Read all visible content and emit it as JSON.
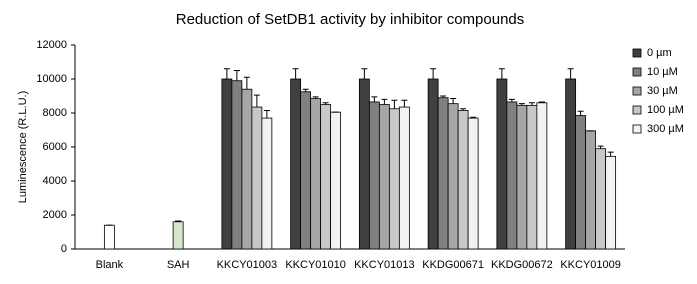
{
  "chart_data": {
    "type": "bar",
    "title": "Reduction of SetDB1 activity by inhibitor compounds",
    "y_label": "Luminescence (R.L.U.)",
    "categories": [
      "Blank",
      "SAH",
      "KKCY01003",
      "KKCY01010",
      "KKCY01013",
      "KKDG00671",
      "KKDG00672",
      "KKCY01009"
    ],
    "control_values": [
      1400,
      1600,
      null,
      null,
      null,
      null,
      null,
      null
    ],
    "control_errors": [
      0,
      50,
      null,
      null,
      null,
      null,
      null,
      null
    ],
    "control_colors": [
      "#ffffff",
      "#d7e8c8"
    ],
    "series": [
      {
        "name": "0 µm",
        "color": "#404040",
        "values": [
          null,
          null,
          10000,
          10000,
          10000,
          10000,
          10000,
          10000
        ],
        "errors": [
          null,
          null,
          600,
          600,
          600,
          600,
          600,
          600
        ]
      },
      {
        "name": "10 µM",
        "color": "#808080",
        "values": [
          null,
          null,
          9900,
          9250,
          8650,
          8900,
          8650,
          7850
        ],
        "errors": [
          null,
          null,
          600,
          150,
          300,
          100,
          150,
          250
        ]
      },
      {
        "name": "30 µM",
        "color": "#a6a6a6",
        "values": [
          null,
          null,
          9400,
          8850,
          8500,
          8550,
          8450,
          6950
        ],
        "errors": [
          null,
          null,
          700,
          100,
          300,
          300,
          100,
          0
        ]
      },
      {
        "name": "100 µM",
        "color": "#c8c8c8",
        "values": [
          null,
          null,
          8350,
          8500,
          8250,
          8150,
          8450,
          5900
        ],
        "errors": [
          null,
          null,
          700,
          100,
          500,
          100,
          150,
          150
        ]
      },
      {
        "name": "300 µM",
        "color": "#f2f2f2",
        "values": [
          null,
          null,
          7700,
          8050,
          8350,
          7700,
          8600,
          5450
        ],
        "errors": [
          null,
          null,
          450,
          0,
          400,
          50,
          50,
          250
        ]
      }
    ],
    "ylim": [
      0,
      12000
    ],
    "yticks": [
      0,
      2000,
      4000,
      6000,
      8000,
      10000,
      12000
    ]
  }
}
